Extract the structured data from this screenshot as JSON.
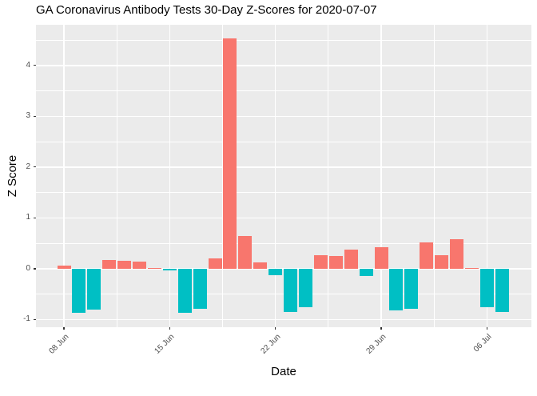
{
  "title": "GA Coronavirus Antibody Tests 30-Day Z-Scores for 2020-07-07",
  "chart_data": {
    "type": "bar",
    "title": "GA Coronavirus Antibody Tests 30-Day Z-Scores for 2020-07-07",
    "xlabel": "Date",
    "ylabel": "Z Score",
    "categories": [
      "2020-06-08",
      "2020-06-09",
      "2020-06-10",
      "2020-06-11",
      "2020-06-12",
      "2020-06-13",
      "2020-06-14",
      "2020-06-15",
      "2020-06-16",
      "2020-06-17",
      "2020-06-18",
      "2020-06-19",
      "2020-06-20",
      "2020-06-21",
      "2020-06-22",
      "2020-06-23",
      "2020-06-24",
      "2020-06-25",
      "2020-06-26",
      "2020-06-27",
      "2020-06-28",
      "2020-06-29",
      "2020-06-30",
      "2020-07-01",
      "2020-07-02",
      "2020-07-03",
      "2020-07-04",
      "2020-07-05",
      "2020-07-06",
      "2020-07-07"
    ],
    "values": [
      0.06,
      -0.87,
      -0.8,
      0.18,
      0.16,
      0.14,
      0.02,
      -0.03,
      -0.86,
      -0.79,
      0.2,
      4.53,
      0.64,
      0.13,
      -0.13,
      -0.85,
      -0.76,
      0.26,
      0.25,
      0.37,
      -0.14,
      0.42,
      -0.82,
      -0.79,
      0.52,
      0.26,
      0.58,
      0.02,
      -0.76,
      -0.85
    ],
    "x_ticks": [
      {
        "day_index": 0,
        "label": "08 Jun"
      },
      {
        "day_index": 7,
        "label": "15 Jun"
      },
      {
        "day_index": 14,
        "label": "22 Jun"
      },
      {
        "day_index": 21,
        "label": "29 Jun"
      },
      {
        "day_index": 28,
        "label": "06 Jul"
      }
    ],
    "y_major_ticks": [
      -1,
      0,
      1,
      2,
      3,
      4
    ],
    "y_minor_ticks": [
      -0.5,
      0.5,
      1.5,
      2.5,
      3.5,
      4.5
    ],
    "x_minor_day_indices": [
      3.5,
      10.5,
      17.5,
      24.5
    ],
    "ylim": [
      -1.15,
      4.8
    ],
    "grid": "on",
    "legend": "none",
    "colors": {
      "positive_bar": "#F8766D",
      "negative_bar": "#00BFC4",
      "panel_background": "#EBEBEB",
      "gridline": "#FFFFFF",
      "axis_text": "#4D4D4D",
      "tick_mark": "#333333",
      "title_text": "#000000"
    }
  }
}
